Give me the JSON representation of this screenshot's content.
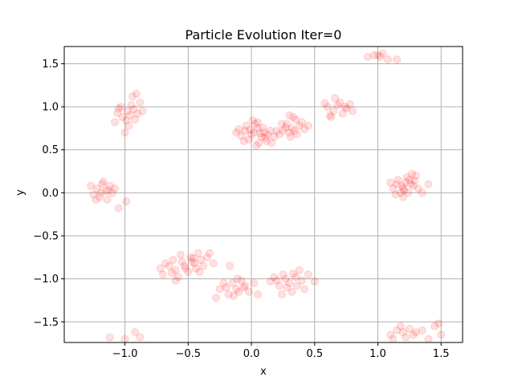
{
  "chart_data": {
    "type": "scatter",
    "title": "Particle Evolution Iter=0",
    "xlabel": "x",
    "ylabel": "y",
    "xlim": [
      -1.48,
      1.67
    ],
    "ylim": [
      -1.74,
      1.7
    ],
    "grid": true,
    "x_ticks": [
      -1.0,
      -0.5,
      0.0,
      0.5,
      1.0,
      1.5
    ],
    "x_tick_labels": [
      "−1.0",
      "−0.5",
      "0.0",
      "0.5",
      "1.0",
      "1.5"
    ],
    "y_ticks": [
      -1.5,
      -1.0,
      -0.5,
      0.0,
      0.5,
      1.0,
      1.5
    ],
    "y_tick_labels": [
      "−1.5",
      "−1.0",
      "−0.5",
      "0.0",
      "0.5",
      "1.0",
      "1.5"
    ],
    "marker_color": "#ff0000",
    "grid_color": "#b0b0b0",
    "points": [
      [
        -0.98,
        0.95
      ],
      [
        -1.02,
        0.88
      ],
      [
        -0.95,
        1.02
      ],
      [
        -0.92,
        0.85
      ],
      [
        -1.05,
        0.98
      ],
      [
        -0.97,
        0.78
      ],
      [
        -0.9,
        0.92
      ],
      [
        -1.08,
        0.82
      ],
      [
        -0.94,
        1.12
      ],
      [
        -0.88,
        1.05
      ],
      [
        -1.0,
        0.7
      ],
      [
        -0.96,
        0.9
      ],
      [
        -1.03,
        1.0
      ],
      [
        -0.86,
        0.95
      ],
      [
        -0.99,
        0.84
      ],
      [
        -1.06,
        0.93
      ],
      [
        -0.93,
        0.97
      ],
      [
        -0.91,
        1.15
      ],
      [
        -1.22,
        0.05
      ],
      [
        -1.18,
        0.1
      ],
      [
        -1.15,
        0.02
      ],
      [
        -1.25,
        -0.02
      ],
      [
        -1.12,
        0.08
      ],
      [
        -1.2,
        -0.05
      ],
      [
        -1.1,
        0.0
      ],
      [
        -1.14,
        -0.08
      ],
      [
        -1.27,
        0.08
      ],
      [
        -1.17,
        0.13
      ],
      [
        -1.08,
        0.05
      ],
      [
        -1.23,
        -0.08
      ],
      [
        -1.05,
        -0.18
      ],
      [
        -0.99,
        -0.1
      ],
      [
        -1.13,
        0.03
      ],
      [
        -1.19,
        0.0
      ],
      [
        -0.65,
        -0.85
      ],
      [
        -0.6,
        -0.9
      ],
      [
        -0.55,
        -0.8
      ],
      [
        -0.7,
        -0.95
      ],
      [
        -0.58,
        -0.98
      ],
      [
        -0.62,
        -0.78
      ],
      [
        -0.52,
        -0.88
      ],
      [
        -0.48,
        -0.75
      ],
      [
        -0.45,
        -0.82
      ],
      [
        -0.4,
        -0.78
      ],
      [
        -0.42,
        -0.7
      ],
      [
        -0.38,
        -0.85
      ],
      [
        -0.5,
        -0.92
      ],
      [
        -0.35,
        -0.75
      ],
      [
        -0.44,
        -0.88
      ],
      [
        -0.47,
        -0.8
      ],
      [
        -0.3,
        -0.82
      ],
      [
        -0.68,
        -0.82
      ],
      [
        -0.72,
        -0.88
      ],
      [
        -0.56,
        -0.72
      ],
      [
        -0.41,
        -0.92
      ],
      [
        -0.6,
        -1.02
      ],
      [
        -0.33,
        -0.7
      ],
      [
        -0.46,
        -0.76
      ],
      [
        -0.53,
        -0.85
      ],
      [
        -0.63,
        -0.93
      ],
      [
        -0.2,
        -1.1
      ],
      [
        -0.15,
        -1.05
      ],
      [
        -0.1,
        -1.15
      ],
      [
        -0.05,
        -1.08
      ],
      [
        -0.12,
        -1.12
      ],
      [
        -0.18,
        -1.18
      ],
      [
        -0.08,
        -1.02
      ],
      [
        -0.02,
        -1.15
      ],
      [
        -0.22,
        -1.05
      ],
      [
        -0.14,
        -1.2
      ],
      [
        -0.06,
        -1.1
      ],
      [
        0.02,
        -1.05
      ],
      [
        0.05,
        -1.18
      ],
      [
        -0.25,
        -1.12
      ],
      [
        -0.11,
        -1.0
      ],
      [
        -0.28,
        -1.22
      ],
      [
        -0.17,
        -0.85
      ],
      [
        0.2,
        -1.02
      ],
      [
        0.25,
        -0.95
      ],
      [
        0.3,
        -1.05
      ],
      [
        0.35,
        -0.98
      ],
      [
        0.22,
        -1.08
      ],
      [
        0.28,
        -1.1
      ],
      [
        0.38,
        -0.9
      ],
      [
        0.32,
        -1.15
      ],
      [
        0.4,
        -1.02
      ],
      [
        0.18,
        -0.98
      ],
      [
        0.45,
        -0.95
      ],
      [
        0.27,
        -1.0
      ],
      [
        0.15,
        -1.03
      ],
      [
        0.36,
        -1.08
      ],
      [
        0.42,
        -1.12
      ],
      [
        0.5,
        -1.03
      ],
      [
        0.24,
        -1.18
      ],
      [
        0.33,
        -0.94
      ],
      [
        -0.05,
        0.72
      ],
      [
        0.0,
        0.68
      ],
      [
        0.05,
        0.75
      ],
      [
        0.08,
        0.65
      ],
      [
        0.03,
        0.8
      ],
      [
        -0.02,
        0.62
      ],
      [
        0.1,
        0.7
      ],
      [
        0.12,
        0.6
      ],
      [
        -0.08,
        0.66
      ],
      [
        0.06,
        0.58
      ],
      [
        0.15,
        0.72
      ],
      [
        -0.04,
        0.78
      ],
      [
        0.02,
        0.7
      ],
      [
        0.09,
        0.76
      ],
      [
        0.18,
        0.65
      ],
      [
        -0.1,
        0.74
      ],
      [
        0.04,
        0.55
      ],
      [
        0.13,
        0.68
      ],
      [
        -0.06,
        0.6
      ],
      [
        0.01,
        0.84
      ],
      [
        0.07,
        0.69
      ],
      [
        0.2,
        0.72
      ],
      [
        0.11,
        0.64
      ],
      [
        -0.01,
        0.73
      ],
      [
        0.16,
        0.58
      ],
      [
        -0.12,
        0.7
      ],
      [
        0.05,
        0.82
      ],
      [
        0.22,
        0.68
      ],
      [
        0.28,
        0.8
      ],
      [
        0.32,
        0.75
      ],
      [
        0.35,
        0.85
      ],
      [
        0.3,
        0.7
      ],
      [
        0.38,
        0.78
      ],
      [
        0.25,
        0.72
      ],
      [
        0.4,
        0.82
      ],
      [
        0.33,
        0.88
      ],
      [
        0.27,
        0.76
      ],
      [
        0.42,
        0.74
      ],
      [
        0.36,
        0.68
      ],
      [
        0.3,
        0.9
      ],
      [
        0.45,
        0.78
      ],
      [
        0.24,
        0.8
      ],
      [
        0.34,
        0.72
      ],
      [
        0.31,
        0.65
      ],
      [
        0.6,
        1.0
      ],
      [
        0.65,
        0.95
      ],
      [
        0.7,
        1.05
      ],
      [
        0.75,
        0.98
      ],
      [
        0.62,
        0.9
      ],
      [
        0.68,
        1.02
      ],
      [
        0.78,
        1.03
      ],
      [
        0.72,
        0.92
      ],
      [
        0.58,
        1.04
      ],
      [
        0.8,
        0.95
      ],
      [
        0.66,
        1.1
      ],
      [
        0.74,
        1.0
      ],
      [
        0.63,
        0.88
      ],
      [
        1.15,
        0.1
      ],
      [
        1.2,
        0.05
      ],
      [
        1.25,
        0.15
      ],
      [
        1.18,
        0.0
      ],
      [
        1.22,
        0.12
      ],
      [
        1.28,
        0.08
      ],
      [
        1.12,
        0.05
      ],
      [
        1.3,
        0.2
      ],
      [
        1.24,
        0.0
      ],
      [
        1.16,
        0.15
      ],
      [
        1.27,
        0.22
      ],
      [
        1.2,
        -0.05
      ],
      [
        1.32,
        0.05
      ],
      [
        1.1,
        0.12
      ],
      [
        1.26,
        0.1
      ],
      [
        1.19,
        0.08
      ],
      [
        1.35,
        0.0
      ],
      [
        1.23,
        0.18
      ],
      [
        1.14,
        -0.02
      ],
      [
        1.4,
        0.1
      ],
      [
        1.29,
        0.14
      ],
      [
        1.21,
        0.03
      ],
      [
        0.92,
        1.58
      ],
      [
        0.97,
        1.6
      ],
      [
        1.0,
        1.6
      ],
      [
        1.04,
        1.62
      ],
      [
        1.02,
        1.58
      ],
      [
        1.08,
        1.55
      ],
      [
        1.15,
        1.55
      ],
      [
        1.1,
        -1.65
      ],
      [
        1.15,
        -1.6
      ],
      [
        1.2,
        -1.62
      ],
      [
        1.25,
        -1.58
      ],
      [
        1.18,
        -1.55
      ],
      [
        1.22,
        -1.68
      ],
      [
        1.3,
        -1.62
      ],
      [
        1.12,
        -1.7
      ],
      [
        1.28,
        -1.65
      ],
      [
        1.35,
        -1.6
      ],
      [
        1.45,
        -1.55
      ],
      [
        1.48,
        -1.52
      ],
      [
        1.5,
        -1.65
      ],
      [
        1.4,
        -1.7
      ],
      [
        -1.12,
        -1.68
      ],
      [
        -1.0,
        -1.7
      ],
      [
        -0.92,
        -1.62
      ],
      [
        -0.88,
        -1.68
      ]
    ]
  }
}
